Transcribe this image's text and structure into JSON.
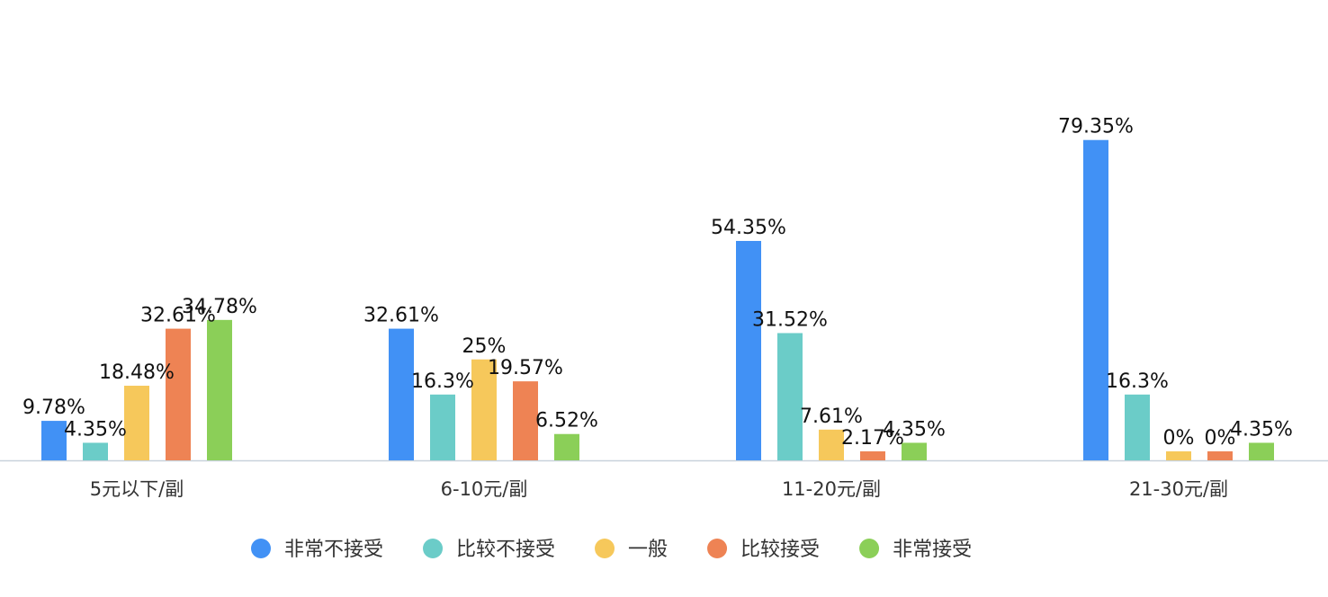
{
  "chart_data": {
    "type": "bar",
    "categories": [
      "5元以下/副",
      "6-10元/副",
      "11-20元/副",
      "21-30元/副"
    ],
    "series": [
      {
        "name": "非常不接受",
        "color": "#4191f5",
        "values": [
          9.78,
          32.61,
          54.35,
          79.35
        ],
        "labels": [
          "9.78%",
          "32.61%",
          "54.35%",
          "79.35%"
        ]
      },
      {
        "name": "比较不接受",
        "color": "#6bccc8",
        "values": [
          4.35,
          16.3,
          31.52,
          16.3
        ],
        "labels": [
          "4.35%",
          "16.3%",
          "31.52%",
          "16.3%"
        ]
      },
      {
        "name": "一般",
        "color": "#f6c85b",
        "values": [
          18.48,
          25,
          7.61,
          0
        ],
        "labels": [
          "18.48%",
          "25%",
          "7.61%",
          "0%"
        ]
      },
      {
        "name": "比较接受",
        "color": "#ee8354",
        "values": [
          32.61,
          19.57,
          2.17,
          0
        ],
        "labels": [
          "32.61%",
          "19.57%",
          "2.17%",
          "0%"
        ]
      },
      {
        "name": "非常接受",
        "color": "#8bcf58",
        "values": [
          34.78,
          6.52,
          4.35,
          4.35
        ],
        "labels": [
          "34.78%",
          "6.52%",
          "4.35%",
          "4.35%"
        ]
      }
    ],
    "ylim": [
      0,
      100
    ],
    "grid": false,
    "legend": "bottom"
  }
}
